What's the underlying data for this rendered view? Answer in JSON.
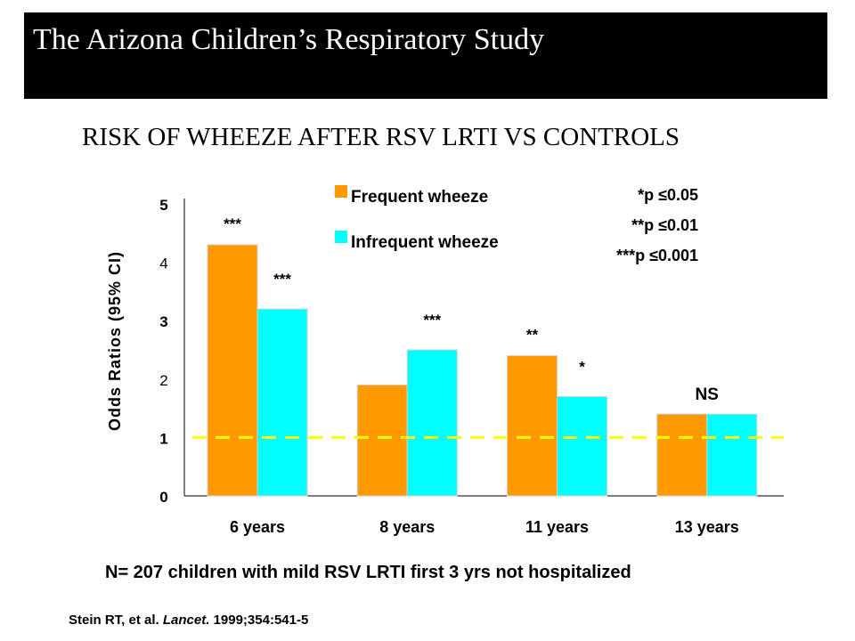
{
  "slide": {
    "title": "The Arizona Children’s Respiratory Study",
    "subtitle": "RISK OF WHEEZE AFTER RSV LRTI VS CONTROLS",
    "footnote": "N= 207 children with mild RSV LRTI first 3 yrs not hospitalized",
    "citation_authors": "Stein RT, et al.",
    "citation_journal": "Lancet.",
    "citation_ref": "1999;354:541-5"
  },
  "chart_data": {
    "type": "bar",
    "ylabel": "Odds Ratios (95% CI)",
    "ylim": [
      0,
      5
    ],
    "yticks": [
      "0",
      "1",
      "2",
      "3",
      "4",
      "5"
    ],
    "grid": false,
    "legend_position": "top-center",
    "categories": [
      "6 years",
      "8 years",
      "11 years",
      "13 years"
    ],
    "series": [
      {
        "name": "Frequent wheeze",
        "color": "#ff9900",
        "values": [
          4.3,
          1.9,
          2.4,
          1.4
        ],
        "labels": [
          "***",
          "",
          "**",
          ""
        ]
      },
      {
        "name": "Infrequent wheeze",
        "color": "#00ffff",
        "values": [
          3.2,
          2.5,
          1.7,
          1.4
        ],
        "labels": [
          "***",
          "***",
          "*",
          ""
        ]
      }
    ],
    "group_labels": [
      "",
      "",
      "",
      "NS"
    ],
    "reference_line": {
      "y": 1,
      "color": "#ffff00"
    },
    "significance_legend": [
      "*p ≤0.05",
      "**p ≤0.01",
      "***p ≤0.001"
    ]
  }
}
